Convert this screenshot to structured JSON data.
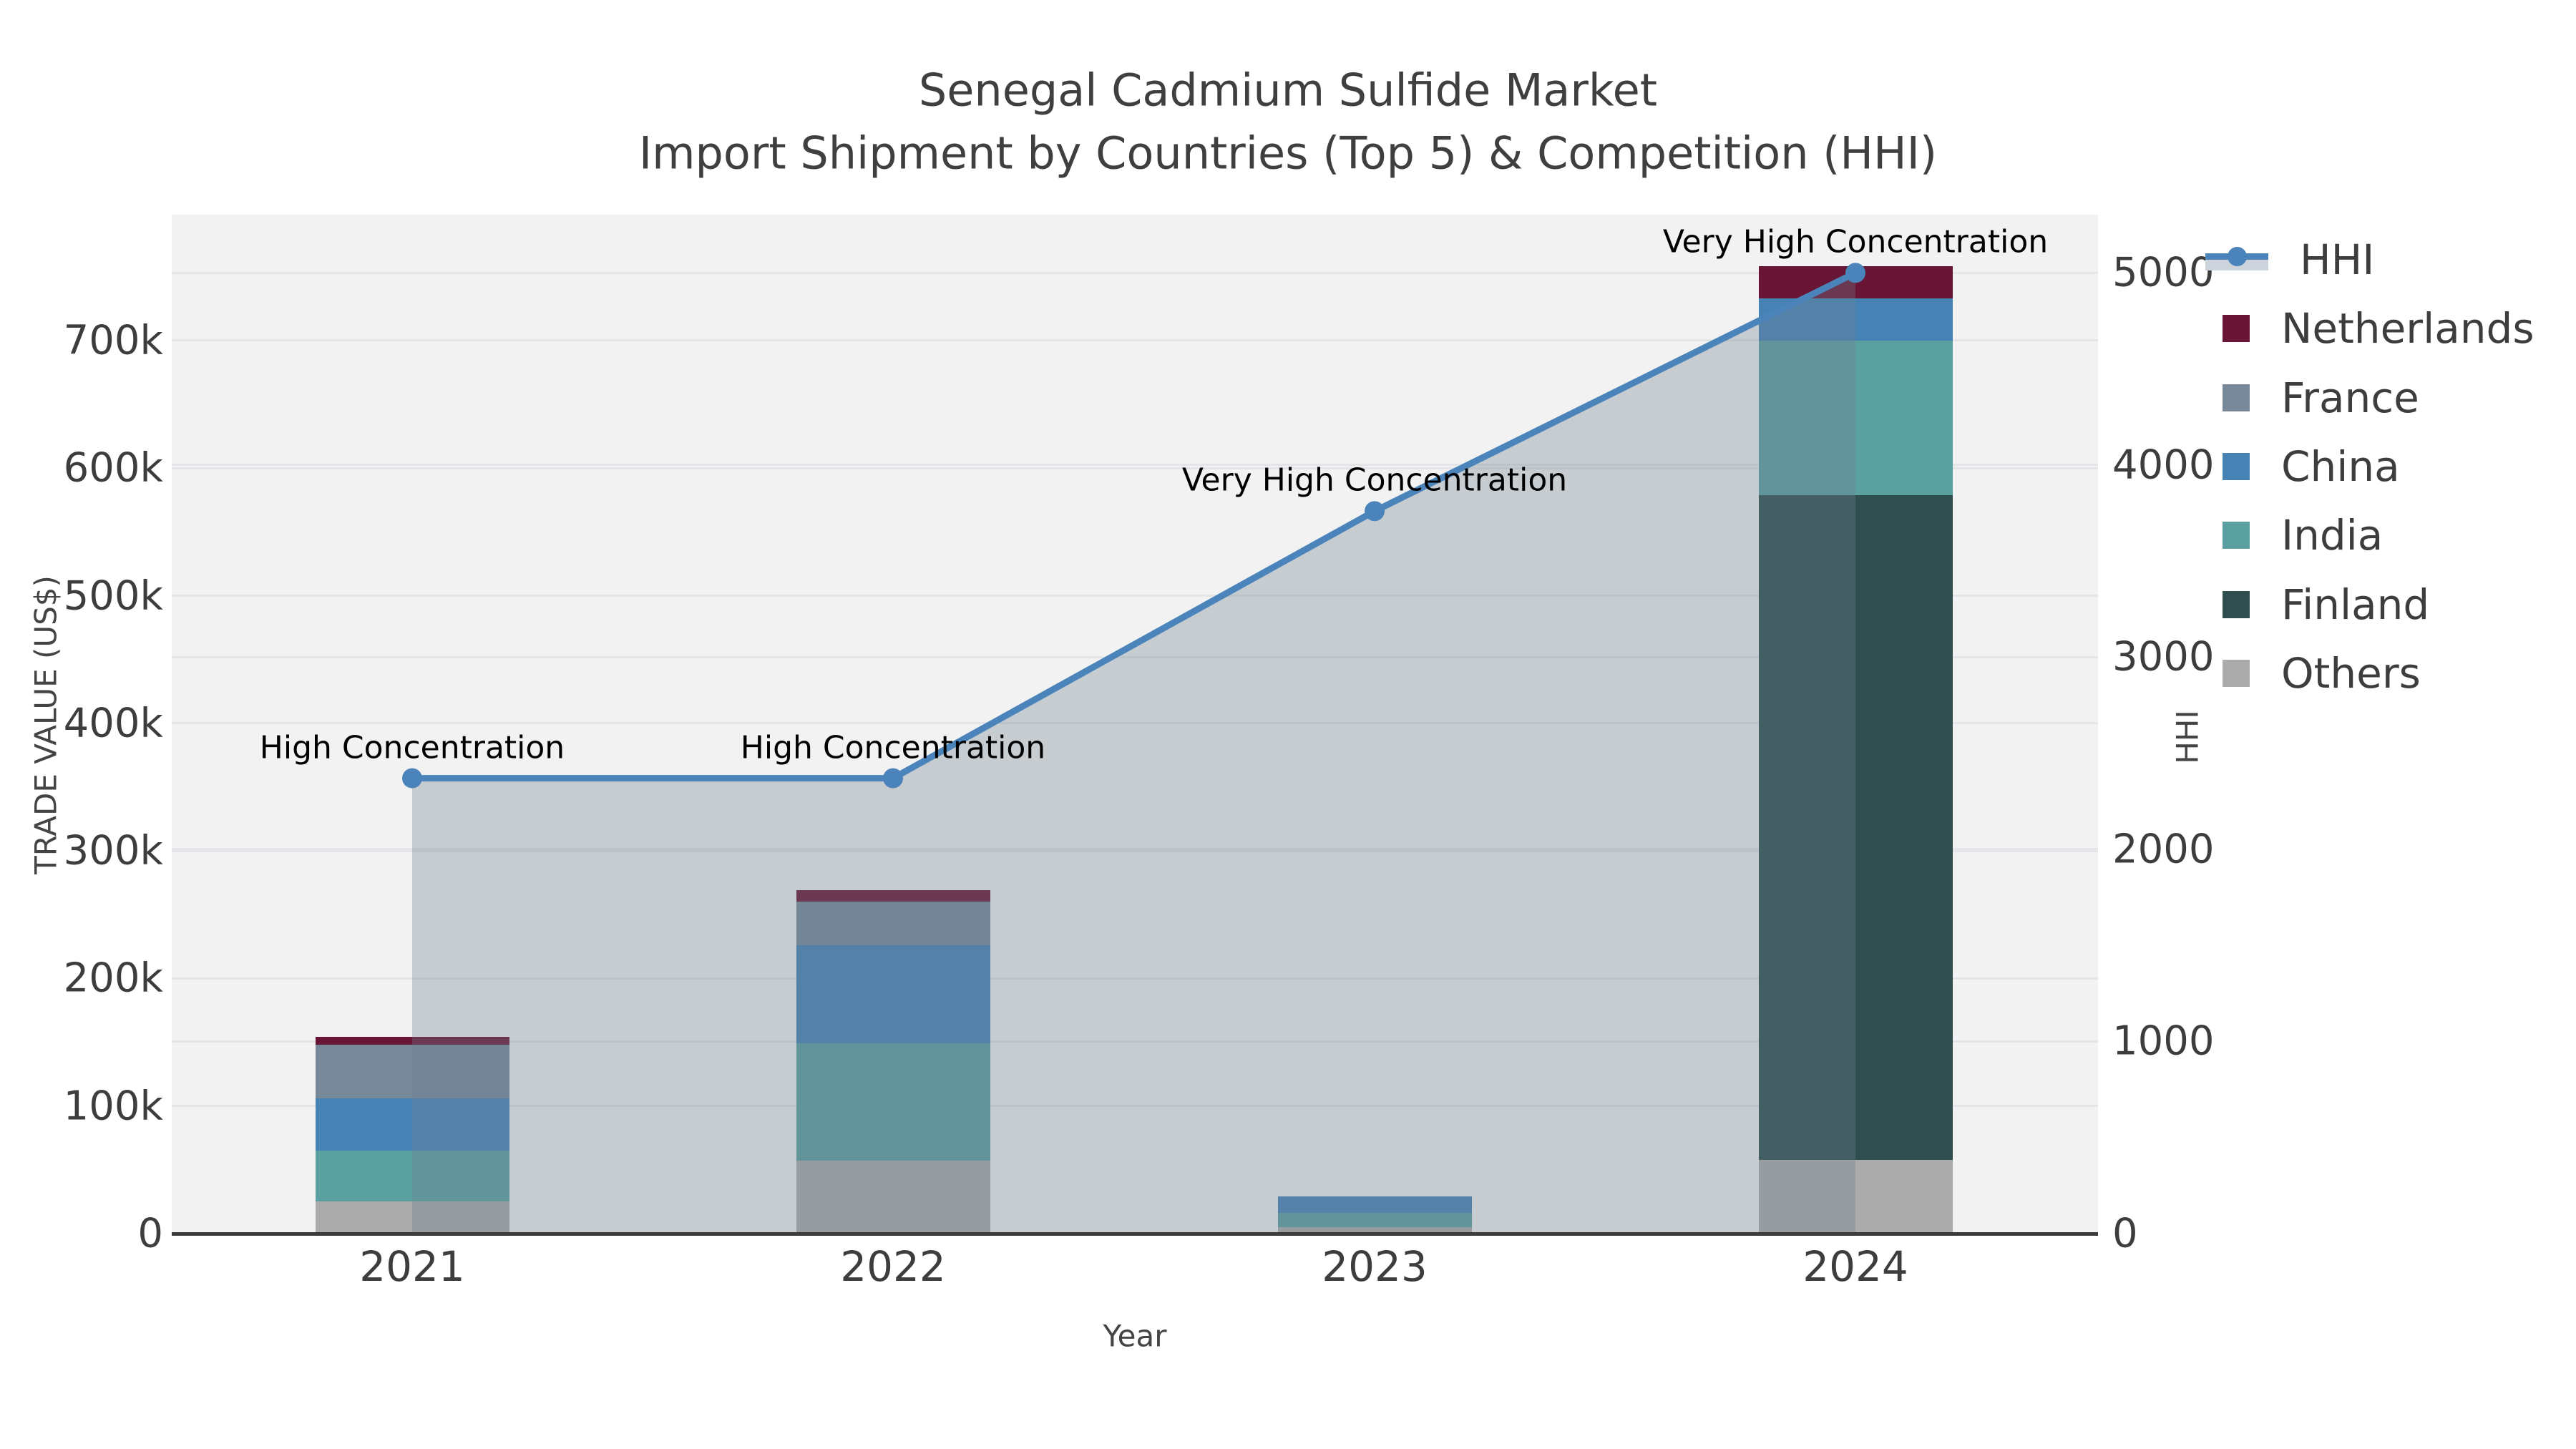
{
  "title": {
    "line1": "Senegal Cadmium Sulfide Market",
    "line2": "Import Shipment by Countries (Top 5) & Competition (HHI)"
  },
  "colors": {
    "background": "#ffffff",
    "plot_background": "#f2f2f2",
    "gridline": "#e3e5e8",
    "axis_line": "#3b3b3b",
    "tick_text": "#3d3d3d",
    "title_text": "#3f3f3f",
    "annotation_text": "#000000",
    "hhi_line": "#4a84ba",
    "hhi_area_fill": "rgba(112,128,144,0.33)"
  },
  "legend": [
    {
      "label": "HHI",
      "type": "line",
      "color": "#4a84ba"
    },
    {
      "label": "Netherlands",
      "type": "swatch",
      "color": "#691535"
    },
    {
      "label": "France",
      "type": "swatch",
      "color": "#778899"
    },
    {
      "label": "China",
      "type": "swatch",
      "color": "#4682b4"
    },
    {
      "label": "India",
      "type": "swatch",
      "color": "#5aa0a0"
    },
    {
      "label": "Finland",
      "type": "swatch",
      "color": "#2f4f4f"
    },
    {
      "label": "Others",
      "type": "swatch",
      "color": "#ababab"
    }
  ],
  "chart_data": {
    "type": "stacked-bar+line",
    "title": "Senegal Cadmium Sulfide Market — Import Shipment by Countries (Top 5) & Competition (HHI)",
    "categories": [
      "2021",
      "2022",
      "2023",
      "2024"
    ],
    "x": {
      "label": "Year"
    },
    "y_left": {
      "label": "TRADE VALUE (US$)",
      "ticks": [
        {
          "v": 0,
          "t": "0"
        },
        {
          "v": 100000,
          "t": "100k"
        },
        {
          "v": 200000,
          "t": "200k"
        },
        {
          "v": 300000,
          "t": "300k"
        },
        {
          "v": 400000,
          "t": "400k"
        },
        {
          "v": 500000,
          "t": "500k"
        },
        {
          "v": 600000,
          "t": "600k"
        },
        {
          "v": 700000,
          "t": "700k"
        }
      ],
      "range": [
        0,
        800000
      ]
    },
    "y_right": {
      "label": "HHI",
      "ticks": [
        {
          "v": 0,
          "t": "0"
        },
        {
          "v": 1000,
          "t": "1000"
        },
        {
          "v": 2000,
          "t": "2000"
        },
        {
          "v": 3000,
          "t": "3000"
        },
        {
          "v": 4000,
          "t": "4000"
        },
        {
          "v": 5000,
          "t": "5000"
        }
      ],
      "range": [
        0,
        5300
      ]
    },
    "series": [
      {
        "name": "Netherlands",
        "color": "#691535",
        "values": [
          6000,
          9000,
          0,
          25000
        ]
      },
      {
        "name": "France",
        "color": "#778899",
        "values": [
          42000,
          34000,
          0,
          0
        ]
      },
      {
        "name": "China",
        "color": "#4682b4",
        "values": [
          41000,
          77000,
          13000,
          33000
        ]
      },
      {
        "name": "India",
        "color": "#5aa0a0",
        "values": [
          40000,
          92000,
          11000,
          121000
        ]
      },
      {
        "name": "Finland",
        "color": "#2f4f4f",
        "values": [
          0,
          0,
          0,
          521000
        ]
      },
      {
        "name": "Others",
        "color": "#ababab",
        "values": [
          25000,
          57000,
          5000,
          58000
        ]
      }
    ],
    "bar_totals": [
      154000,
      269000,
      29000,
      758000
    ],
    "stack_order_bottom_to_top": [
      "Others",
      "Finland",
      "India",
      "China",
      "France",
      "Netherlands"
    ],
    "line_series": {
      "name": "HHI",
      "axis": "right",
      "color": "#4a84ba",
      "fill": "rgba(112,128,144,0.33)",
      "values": [
        2370,
        2370,
        3760,
        5000
      ]
    },
    "annotations": [
      {
        "text": "High Concentration",
        "category": "2021",
        "hhi": 2370
      },
      {
        "text": "High Concentration",
        "category": "2022",
        "hhi": 2370
      },
      {
        "text": "Very High Concentration",
        "category": "2023",
        "hhi": 3760
      },
      {
        "text": "Very High Concentration",
        "category": "2024",
        "hhi": 5000
      }
    ],
    "legend_position": "top-right",
    "grid": true
  }
}
